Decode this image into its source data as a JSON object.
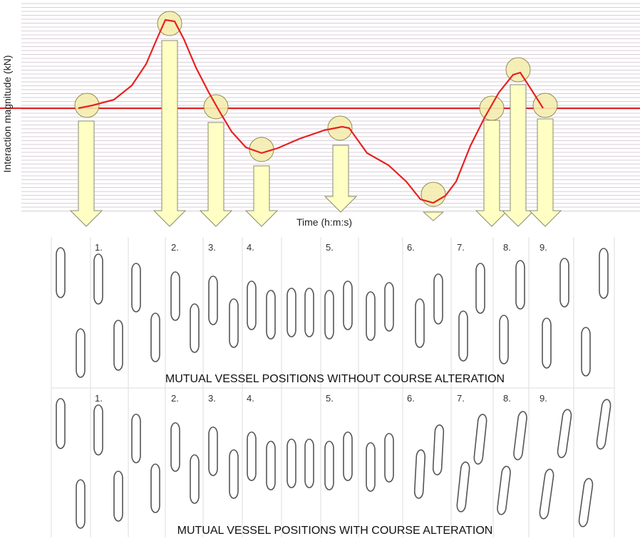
{
  "figure": {
    "y_axis_label": "Interaction magnitude (kN)",
    "x_axis_label": "Time (h:m:s)",
    "panels": [
      {
        "caption": "MUTUAL VESSEL POSITIONS WITHOUT COURSE  ALTERATION",
        "step_labels": [
          "1.",
          "2.",
          "3.",
          "4.",
          "5.",
          "6.",
          "7.",
          "8.",
          "9."
        ]
      },
      {
        "caption": "MUTUAL VESSEL POSITIONS WITH COURSE ALTERATION",
        "step_labels": [
          "1.",
          "2.",
          "3.",
          "4.",
          "5.",
          "6.",
          "7.",
          "8.",
          "9."
        ]
      }
    ]
  }
}
